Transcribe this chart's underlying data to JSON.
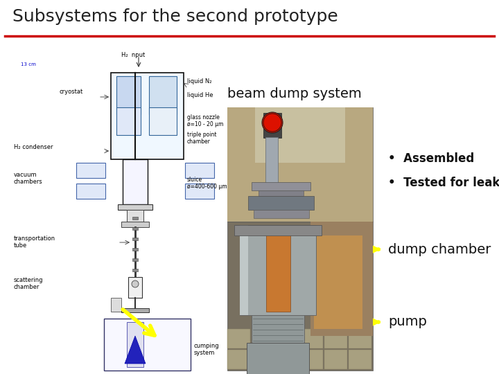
{
  "title": "Subsystems for the second prototype",
  "title_fontsize": 18,
  "title_color": "#222222",
  "underline_color": "#cc0000",
  "slide_bg": "#ffffff",
  "subtitle_beam_dump": "beam dump system",
  "subtitle_fontsize": 14,
  "bullet1": "Assembled",
  "bullet2": "Tested for leakages",
  "bullet_fontsize": 12,
  "label_dump_chamber": "dump chamber",
  "label_dump_fontsize": 14,
  "label_pump": "pump",
  "label_pump_fontsize": 14,
  "arrow_color": "#ffff00",
  "schematic_bg": "#ffffff",
  "photo_top_bg": "#8a8070",
  "photo_bot_bg": "#7a7060"
}
